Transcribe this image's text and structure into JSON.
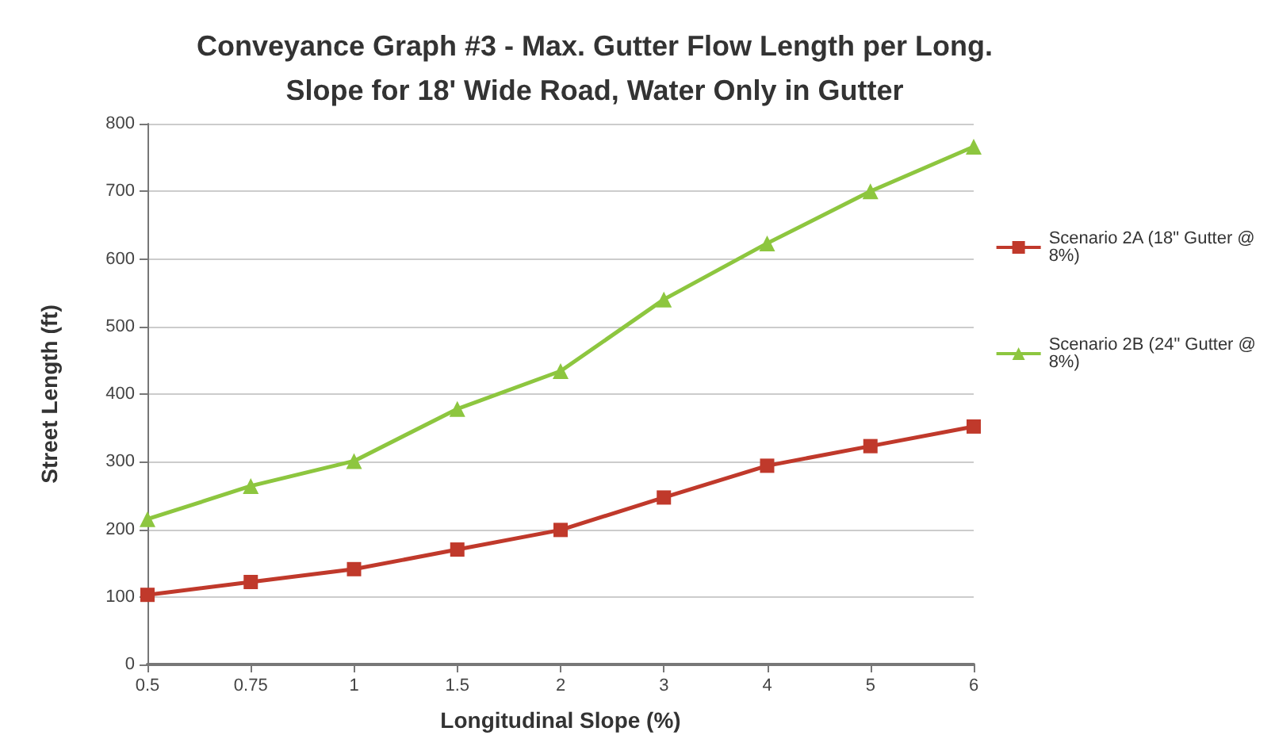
{
  "chart_data": {
    "type": "line",
    "title": "Conveyance Graph #3 - Max. Gutter Flow Length per Long.\nSlope for 18' Wide Road, Water Only in Gutter",
    "xlabel": "Longitudinal Slope (%)",
    "ylabel": "Street Length (ft)",
    "categories": [
      "0.5",
      "0.75",
      "1",
      "1.5",
      "2",
      "3",
      "4",
      "5",
      "6"
    ],
    "series": [
      {
        "name": "Scenario 2A (18\" Gutter @ 8%)",
        "color": "#c0392b",
        "marker": "square",
        "values": [
          103,
          122,
          141,
          170,
          199,
          247,
          294,
          323,
          352
        ]
      },
      {
        "name": "Scenario 2B (24\" Gutter @ 8%)",
        "color": "#8dc63f",
        "marker": "triangle",
        "values": [
          215,
          264,
          301,
          378,
          434,
          540,
          623,
          700,
          766
        ]
      }
    ],
    "ylim": [
      0,
      800
    ],
    "yticks": [
      0,
      100,
      200,
      300,
      400,
      500,
      600,
      700,
      800
    ],
    "grid": "y",
    "legend": "right",
    "line_style": "solid"
  }
}
